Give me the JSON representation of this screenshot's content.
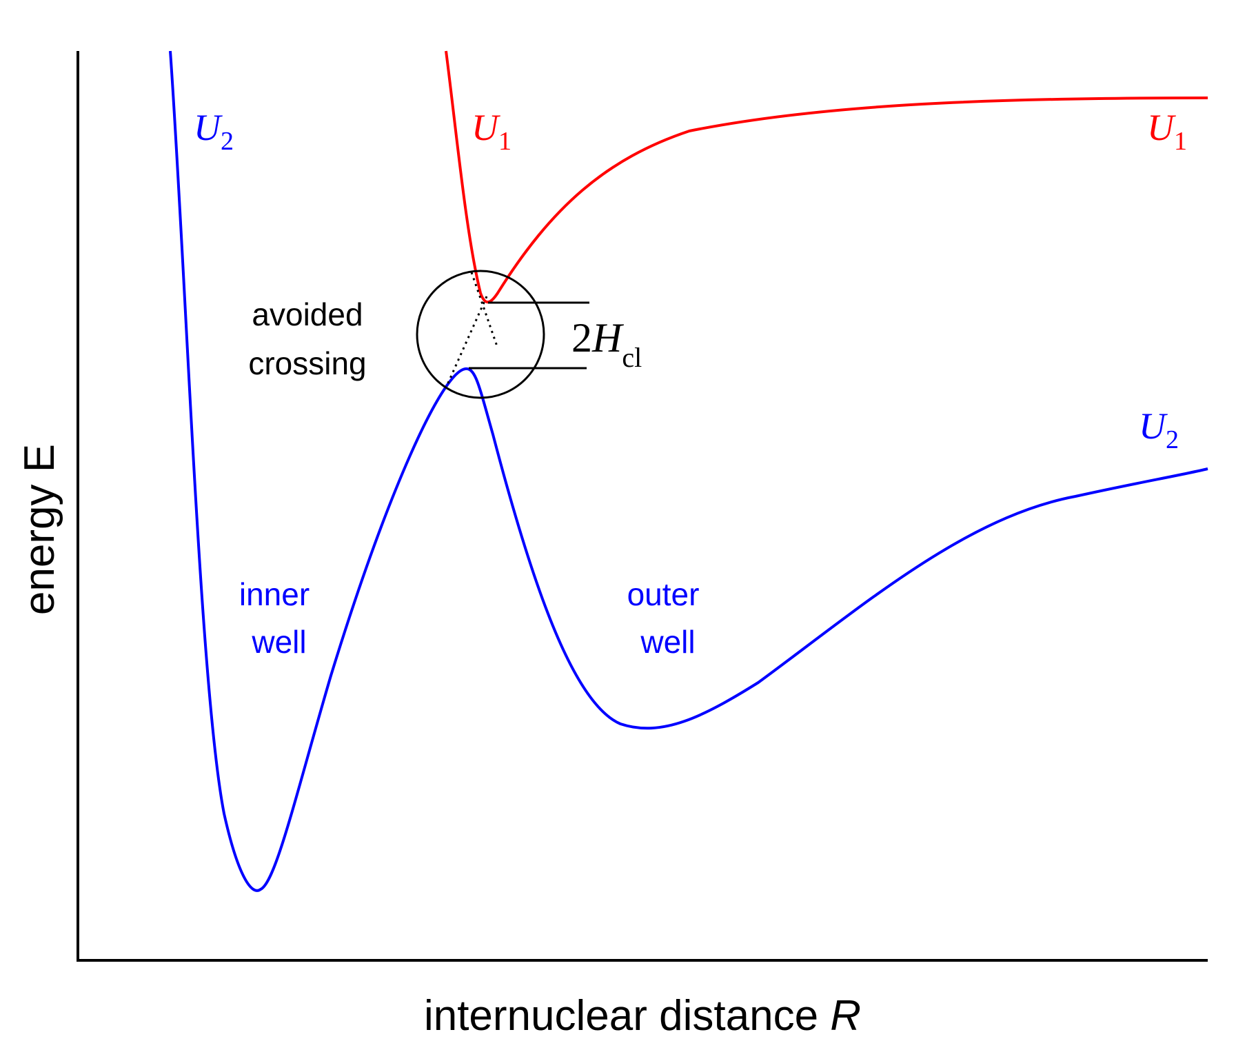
{
  "axes": {
    "y_label": "energy E",
    "x_label_text": "internuclear distance ",
    "x_label_var": "R"
  },
  "curves": {
    "u1": {
      "symbol": "U",
      "subscript": "1",
      "color": "#ff0000"
    },
    "u2": {
      "symbol": "U",
      "subscript": "2",
      "color": "#0000ff"
    }
  },
  "labels": {
    "avoided_line1": "avoided",
    "avoided_line2": "crossing",
    "inner_line1": "inner",
    "inner_line2": "well",
    "outer_line1": "outer",
    "outer_line2": "well",
    "gap_coeff": "2",
    "gap_var": "H",
    "gap_sub": "cl"
  }
}
